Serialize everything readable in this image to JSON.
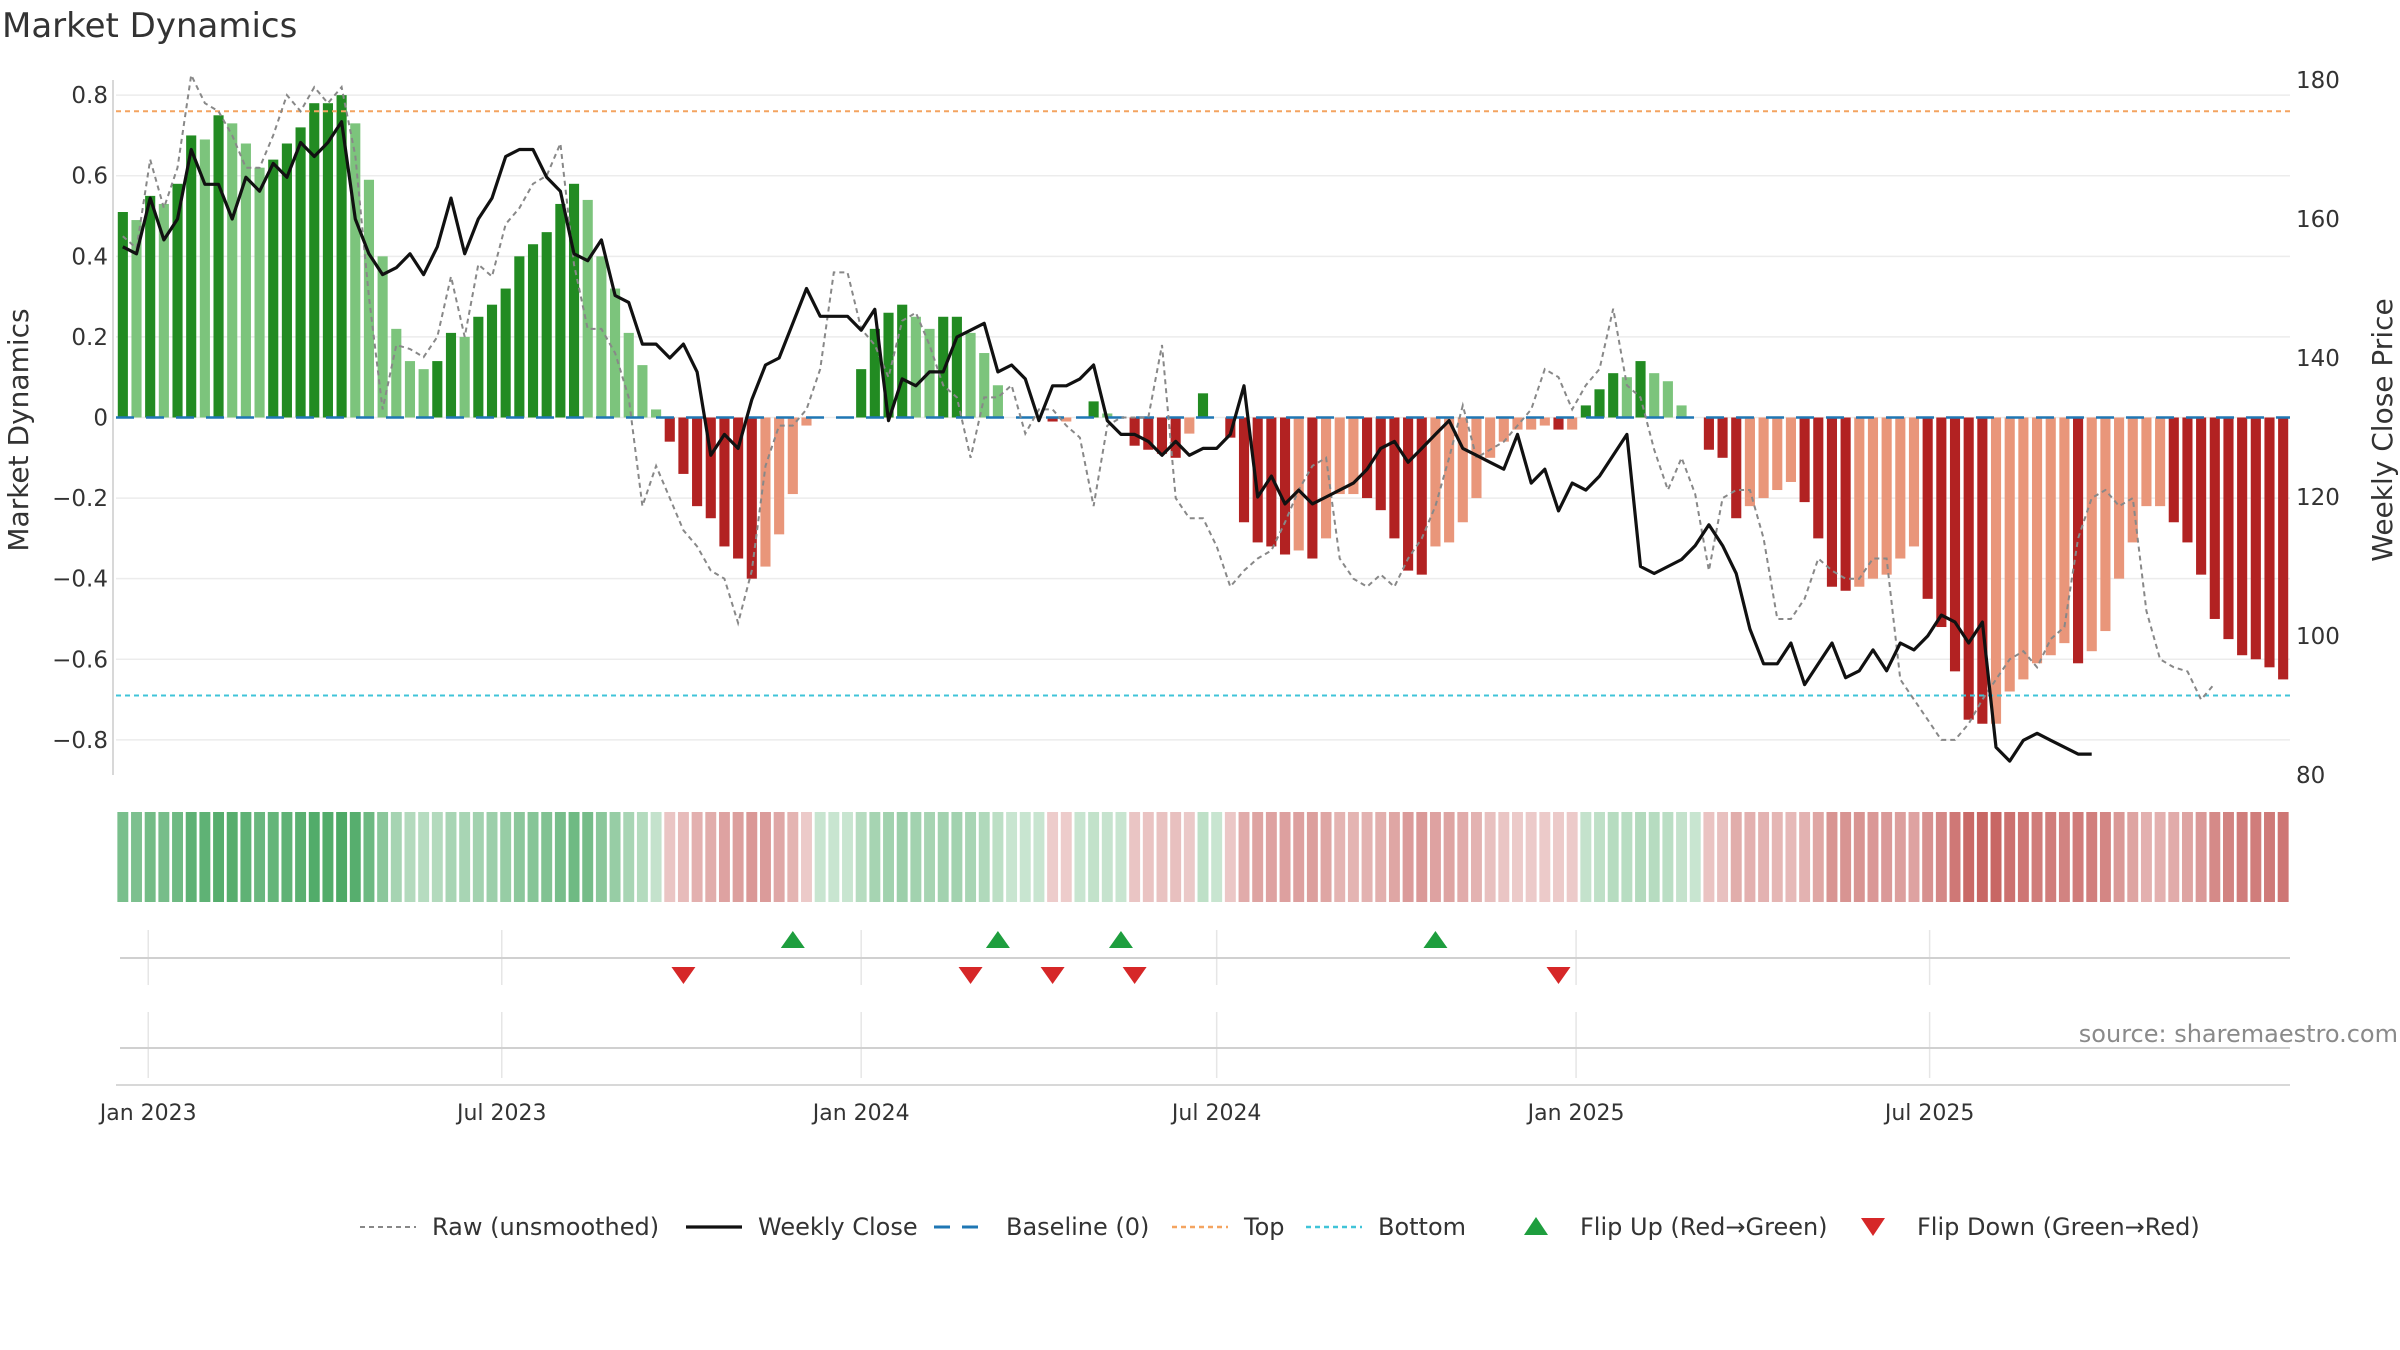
{
  "title": "Market Dynamics",
  "source_text": "source: sharemaestro.com",
  "colors": {
    "strong_green": "#228b22",
    "light_green": "#7cc47c",
    "strong_red": "#b22222",
    "light_red": "#e9967a",
    "raw": "#888888",
    "close": "#111111",
    "baseline": "#1f77b4",
    "top": "#f4a460",
    "bottom": "#40c4d8",
    "flip_up": "#1e9e3e",
    "flip_down": "#d62728"
  },
  "chart_data": {
    "type": "bar",
    "title": "Market Dynamics",
    "ylabel": "Market Dynamics",
    "y2label": "Weekly Close Price",
    "ylim": [
      -0.85,
      0.85
    ],
    "y2lim": [
      80,
      180
    ],
    "y_ticks": [
      -0.8,
      -0.6,
      -0.4,
      -0.2,
      0,
      0.2,
      0.4,
      0.6,
      0.8
    ],
    "y_tick_labels": [
      "−0.8",
      "−0.6",
      "−0.4",
      "−0.2",
      "0",
      "0.2",
      "0.4",
      "0.6",
      "0.8"
    ],
    "y2_ticks": [
      80,
      100,
      120,
      140,
      160,
      180
    ],
    "x_ticks": [
      {
        "date": "2023-01-01",
        "label": "Jan 2023"
      },
      {
        "date": "2023-07-01",
        "label": "Jul 2023"
      },
      {
        "date": "2024-01-01",
        "label": "Jan 2024"
      },
      {
        "date": "2024-07-01",
        "label": "Jul 2024"
      },
      {
        "date": "2025-01-01",
        "label": "Jan 2025"
      },
      {
        "date": "2025-07-01",
        "label": "Jul 2025"
      }
    ],
    "first_week": "2022-12-19",
    "top_level": 0.76,
    "bottom_level": -0.69,
    "baseline": 0,
    "bars": [
      0.51,
      0.49,
      0.55,
      0.53,
      0.58,
      0.7,
      0.69,
      0.75,
      0.73,
      0.68,
      0.62,
      0.64,
      0.68,
      0.72,
      0.78,
      0.78,
      0.8,
      0.73,
      0.59,
      0.4,
      0.22,
      0.14,
      0.12,
      0.14,
      0.21,
      0.2,
      0.25,
      0.28,
      0.32,
      0.4,
      0.43,
      0.46,
      0.53,
      0.58,
      0.54,
      0.4,
      0.32,
      0.21,
      0.13,
      0.02,
      -0.06,
      -0.14,
      -0.22,
      -0.25,
      -0.32,
      -0.35,
      -0.4,
      -0.37,
      -0.29,
      -0.19,
      -0.02,
      0,
      0,
      0,
      0.12,
      0.22,
      0.26,
      0.28,
      0.25,
      0.22,
      0.25,
      0.25,
      0.21,
      0.16,
      0.08,
      0,
      0,
      0,
      -0.01,
      -0.01,
      0,
      0.04,
      0.01,
      0,
      -0.07,
      -0.08,
      -0.09,
      -0.1,
      -0.04,
      0.06,
      0,
      -0.05,
      -0.26,
      -0.31,
      -0.32,
      -0.34,
      -0.33,
      -0.35,
      -0.3,
      -0.19,
      -0.19,
      -0.2,
      -0.23,
      -0.3,
      -0.38,
      -0.39,
      -0.32,
      -0.31,
      -0.26,
      -0.2,
      -0.1,
      -0.06,
      -0.03,
      -0.03,
      -0.02,
      -0.03,
      -0.03,
      0.03,
      0.07,
      0.11,
      0.1,
      0.14,
      0.11,
      0.09,
      0.03,
      0,
      -0.08,
      -0.1,
      -0.25,
      -0.22,
      -0.2,
      -0.18,
      -0.16,
      -0.21,
      -0.3,
      -0.42,
      -0.43,
      -0.42,
      -0.4,
      -0.39,
      -0.35,
      -0.32,
      -0.45,
      -0.52,
      -0.63,
      -0.75,
      -0.76,
      -0.76,
      -0.68,
      -0.65,
      -0.61,
      -0.59,
      -0.56,
      -0.61,
      -0.58,
      -0.53,
      -0.4,
      -0.31,
      -0.22,
      -0.22,
      -0.26,
      -0.31,
      -0.39,
      -0.5,
      -0.55,
      -0.59,
      -0.6,
      -0.62,
      -0.65
    ],
    "raw": [
      0.45,
      0.42,
      0.64,
      0.52,
      0.62,
      0.85,
      0.78,
      0.76,
      0.7,
      0.62,
      0.62,
      0.7,
      0.8,
      0.76,
      0.82,
      0.78,
      0.82,
      0.65,
      0.3,
      0.02,
      0.18,
      0.17,
      0.15,
      0.2,
      0.35,
      0.2,
      0.38,
      0.35,
      0.48,
      0.52,
      0.58,
      0.6,
      0.68,
      0.38,
      0.22,
      0.22,
      0.16,
      0.05,
      -0.22,
      -0.12,
      -0.2,
      -0.28,
      -0.32,
      -0.38,
      -0.4,
      -0.51,
      -0.38,
      -0.12,
      -0.02,
      -0.02,
      0.02,
      0.12,
      0.36,
      0.36,
      0.22,
      0.18,
      0.1,
      0.24,
      0.26,
      0.18,
      0.08,
      0.05,
      -0.1,
      0.05,
      0.05,
      0.08,
      -0.04,
      0.02,
      0.02,
      -0.02,
      -0.05,
      -0.22,
      -0.02,
      0,
      0,
      0,
      0.18,
      -0.2,
      -0.25,
      -0.25,
      -0.32,
      -0.42,
      -0.38,
      -0.35,
      -0.33,
      -0.26,
      -0.18,
      -0.12,
      -0.1,
      -0.35,
      -0.4,
      -0.42,
      -0.39,
      -0.42,
      -0.35,
      -0.3,
      -0.22,
      -0.1,
      0.03,
      -0.1,
      -0.08,
      -0.06,
      -0.02,
      0.02,
      0.12,
      0.1,
      0.02,
      0.08,
      0.12,
      0.27,
      0.08,
      0.05,
      -0.08,
      -0.18,
      -0.1,
      -0.19,
      -0.38,
      -0.2,
      -0.18,
      -0.18,
      -0.3,
      -0.5,
      -0.5,
      -0.45,
      -0.35,
      -0.38,
      -0.4,
      -0.4,
      -0.35,
      -0.35,
      -0.65,
      -0.7,
      -0.75,
      -0.8,
      -0.8,
      -0.76,
      -0.7,
      -0.65,
      -0.6,
      -0.58,
      -0.62,
      -0.55,
      -0.52,
      -0.3,
      -0.2,
      -0.18,
      -0.22,
      -0.2,
      -0.48,
      -0.6,
      -0.62,
      -0.63,
      -0.7,
      -0.66
    ],
    "close": [
      156,
      155,
      163,
      157,
      160,
      170,
      165,
      165,
      160,
      166,
      164,
      168,
      166,
      171,
      169,
      171,
      174,
      160,
      155,
      152,
      153,
      155,
      152,
      156,
      163,
      155,
      160,
      163,
      169,
      170,
      170,
      166,
      164,
      155,
      154,
      157,
      149,
      148,
      142,
      142,
      140,
      142,
      138,
      126,
      129,
      127,
      134,
      139,
      140,
      145,
      150,
      146,
      146,
      146,
      144,
      147,
      131,
      137,
      136,
      138,
      138,
      143,
      144,
      145,
      138,
      139,
      137,
      131,
      136,
      136,
      137,
      139,
      131,
      129,
      129,
      128,
      126,
      128,
      126,
      127,
      127,
      129,
      136,
      120,
      123,
      119,
      121,
      119,
      120,
      121,
      122,
      124,
      127,
      128,
      125,
      127,
      129,
      131,
      127,
      126,
      125,
      124,
      129,
      122,
      124,
      118,
      122,
      121,
      123,
      126,
      129,
      110,
      109,
      110,
      111,
      113,
      116,
      113,
      109,
      101,
      96,
      96,
      99,
      93,
      96,
      99,
      94,
      95,
      98,
      95,
      99,
      98,
      100,
      103,
      102,
      99,
      102,
      84,
      82,
      85,
      86,
      85,
      84,
      83,
      83
    ],
    "flip_up_dates": [
      "2023-11-27",
      "2024-03-11",
      "2024-05-13",
      "2024-10-21"
    ],
    "flip_down_dates": [
      "2023-10-02",
      "2024-02-26",
      "2024-04-08",
      "2024-05-20",
      "2024-12-23"
    ],
    "legend": [
      {
        "label": "Raw (unsmoothed)",
        "key": "raw"
      },
      {
        "label": "Weekly Close",
        "key": "close"
      },
      {
        "label": "Baseline (0)",
        "key": "baseline"
      },
      {
        "label": "Top",
        "key": "top"
      },
      {
        "label": "Bottom",
        "key": "bottom"
      },
      {
        "label": "Flip Up (Red→Green)",
        "key": "flip_up"
      },
      {
        "label": "Flip Down (Green→Red)",
        "key": "flip_down"
      }
    ]
  }
}
